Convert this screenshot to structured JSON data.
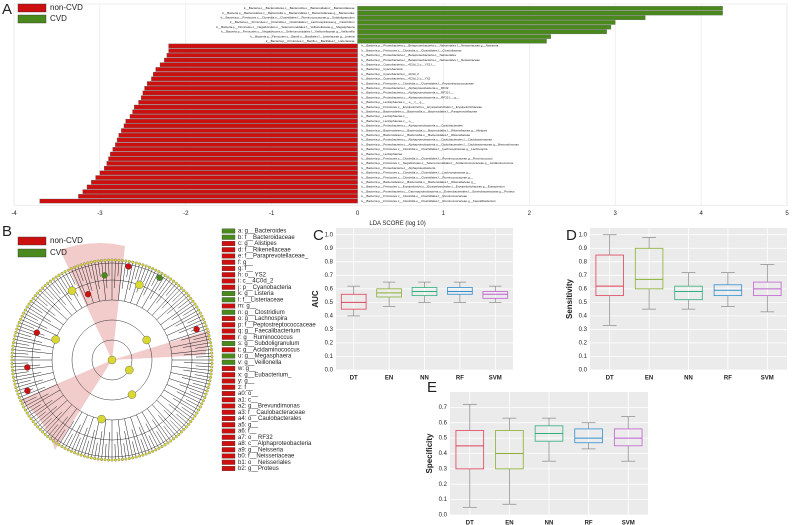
{
  "chart_data": [
    {
      "type": "hbar",
      "panel": "A",
      "xlabel": "LDA SCORE (log 10)",
      "categories": [
        "k__Bacteria.p__Bacteroidetes.c__Bacteroidia.o__Bacteroidales.f__Bacteroidaceae",
        "k__Bacteria.p__Bacteroidetes.c__Bacteroidia.o__Bacteroidales.f__Bacteroidaceae.g__Bacteroides",
        "k__Bacteria.p__Firmicutes.c__Clostridia.o__Clostridiales.f__Ruminococcaceae.g__Subdoligranulum",
        "k__Bacteria.p__Firmicutes.c__Clostridia.o__Clostridiales.f__Lachnospiraceae.g__Clostridium",
        "k__Bacteria.p__Firmicutes.c__Negativicutes.o__Selenomonadales.f__Veillonellaceae.g__Megasphaera",
        "k__Bacteria.p__Firmicutes.c__Negativicutes.o__Selenomonadales.f__Veillonellaceae.g__Veillonella",
        "k__Bacteria.p__Firmicutes.c__Bacilli.o__Bacillales.f__Listeriaceae.g__Listeria",
        "k__Bacteria.p__Firmicutes.c__Bacilli.o__Bacillales.f__Listeriaceae",
        "k__Bacteria.p__Proteobacteria.c__Betaproteobacteria.o__Neisseriales.f__Neisseriaceae.g__Neisseria",
        "k__Bacteria.p__Firmicutes.c__Clostridia.o__Clostridiales.f__Clostridiaceae",
        "k__Bacteria.p__Proteobacteria.c__Betaproteobacteria.o__Neisseriales",
        "k__Bacteria.p__Proteobacteria.c__Betaproteobacteria.o__Neisseriales.f__Neisseriaceae",
        "k__Bacteria.p__Cyanobacteria.c__4C0d_2.o__YS2.f__",
        "k__Bacteria.p__Cyanobacteria",
        "k__Bacteria.p__Cyanobacteria.c__4C0d_2",
        "k__Bacteria.p__Cyanobacteria.c__4C0d_2.o__YS2",
        "k__Bacteria.p__Firmicutes.c__Clostridia.o__Clostridiales.f__Peptostreptococcaceae",
        "k__Bacteria.p__Proteobacteria.c__Alphaproteobacteria.o__RF32",
        "k__Bacteria.p__Proteobacteria.c__Alphaproteobacteria.o__RF32.f__",
        "k__Bacteria.p__Proteobacteria.c__Alphaproteobacteria.o__RF32.f__.g__",
        "k__Bacteria.p__Lentisphaerae.c__.o__.f__.g__",
        "k__Bacteria.p__Firmicutes.c__Erysipelotrichi.o__Erysipelotrichales.f__Erysipelotrichaceae",
        "k__Bacteria.p__Bacteroidetes.c__Bacteroidia.o__Bacteroidales.f__Paraprevotellaceae",
        "k__Bacteria.p__Lentisphaerae.c__",
        "k__Bacteria.p__Lentisphaerae.c__.o__",
        "k__Bacteria.p__Proteobacteria.c__Alphaproteobacteria.o__Caulobacterales",
        "k__Bacteria.p__Bacteroidetes.c__Bacteroidia.o__Bacteroidales.f__Rikenellaceae.g__Alistipes",
        "k__Bacteria.p__Bacteroidetes.c__Bacteroidia.o__Bacteroidales.f__Rikenellaceae",
        "k__Bacteria.p__Proteobacteria.c__Alphaproteobacteria.o__Caulobacterales.f__Caulobacteraceae",
        "k__Bacteria.p__Proteobacteria.c__Alphaproteobacteria.o__Caulobacterales.f__Caulobacteraceae.g__Brevundimonas",
        "k__Bacteria.p__Firmicutes.c__Clostridia.o__Clostridiales.f__Lachnospiraceae.g__Lachnospira",
        "k__Bacteria.p__Lentisphaerae",
        "k__Bacteria.p__Firmicutes.c__Clostridia.o__Clostridiales.f__Ruminococcaceae.g__Ruminococcus",
        "k__Bacteria.p__Firmicutes.c__Negativicutes.o__Selenomonadales.f__Acidaminococcaceae.g__Acidaminococcus",
        "k__Bacteria.p__Proteobacteria.c__Alphaproteobacteria",
        "k__Bacteria.p__Firmicutes.c__Clostridia.o__Clostridiales.f__Lachnospiraceae.g__",
        "k__Bacteria.p__Firmicutes.c__Clostridia.o__Clostridiales.f__Ruminococcaceae.g__",
        "k__Bacteria.p__Bacteroidetes.c__Bacteroidia.o__Bacteroidales.f__Rikenellaceae.g__",
        "k__Bacteria.p__Firmicutes.c__Erysipelotrichi.o__Erysipelotrichales.f__Erysipelotrichaceae.g__Eubacterium",
        "k__Bacteria.p__Proteobacteria.c__Gammaproteobacteria.o__Enterobacteriales.f__Enterobacteriaceae.g__Proteus",
        "k__Bacteria.p__Firmicutes.c__Clostridia.o__Clostridiales.f__Ruminococcaceae",
        "k__Bacteria.p__Firmicutes.c__Clostridia.o__Clostridiales.f__Ruminococcaceae.g__Faecalibacterium"
      ],
      "series": [
        {
          "name": "non-CVD",
          "color": "#cc1010",
          "values": [
            null,
            null,
            null,
            null,
            null,
            null,
            null,
            null,
            -2.2,
            -2.2,
            -2.22,
            -2.25,
            -2.3,
            -2.35,
            -2.38,
            -2.4,
            -2.45,
            -2.48,
            -2.5,
            -2.52,
            -2.55,
            -2.6,
            -2.62,
            -2.65,
            -2.7,
            -2.72,
            -2.75,
            -2.78,
            -2.8,
            -2.82,
            -2.85,
            -2.88,
            -2.9,
            -2.92,
            -2.95,
            -3.0,
            -3.05,
            -3.1,
            -3.15,
            -3.2,
            -3.25,
            -3.7
          ]
        },
        {
          "name": "CVD",
          "color": "#4a8a1c",
          "values": [
            4.25,
            4.25,
            3.35,
            3.0,
            2.95,
            2.9,
            2.25,
            2.2,
            null,
            null,
            null,
            null,
            null,
            null,
            null,
            null,
            null,
            null,
            null,
            null,
            null,
            null,
            null,
            null,
            null,
            null,
            null,
            null,
            null,
            null,
            null,
            null,
            null,
            null,
            null,
            null,
            null,
            null,
            null,
            null,
            null,
            null
          ]
        }
      ],
      "xlim": [
        -4,
        5
      ],
      "xticks": [
        -4,
        -3,
        -2,
        -1,
        0,
        1,
        2,
        3,
        4,
        5
      ]
    },
    {
      "type": "box",
      "panel": "C",
      "ylabel": "AUC",
      "categories": [
        "DT",
        "EN",
        "NN",
        "RF",
        "SVM"
      ],
      "colors": [
        "#e0405a",
        "#8ab030",
        "#30b080",
        "#3090d0",
        "#c060d0"
      ],
      "boxes": [
        {
          "min": 0.4,
          "q1": 0.45,
          "median": 0.5,
          "q3": 0.56,
          "max": 0.62
        },
        {
          "min": 0.47,
          "q1": 0.54,
          "median": 0.57,
          "q3": 0.6,
          "max": 0.65
        },
        {
          "min": 0.5,
          "q1": 0.55,
          "median": 0.58,
          "q3": 0.61,
          "max": 0.65
        },
        {
          "min": 0.5,
          "q1": 0.56,
          "median": 0.58,
          "q3": 0.61,
          "max": 0.65
        },
        {
          "min": 0.5,
          "q1": 0.53,
          "median": 0.56,
          "q3": 0.58,
          "max": 0.62
        }
      ],
      "ylim": [
        0,
        1.05
      ],
      "yticks": [
        {
          "value": 0,
          "label": "0.0"
        },
        0.1,
        0.2,
        0.3,
        0.4,
        0.5,
        0.6,
        0.7,
        0.8,
        0.9,
        {
          "value": 1,
          "label": "1.0"
        }
      ],
      "grid": true
    },
    {
      "type": "box",
      "panel": "D",
      "ylabel": "Sensitivity",
      "categories": [
        "DT",
        "EN",
        "NN",
        "RF",
        "SVM"
      ],
      "colors": [
        "#e0405a",
        "#8ab030",
        "#30b080",
        "#3090d0",
        "#c060d0"
      ],
      "boxes": [
        {
          "min": 0.33,
          "q1": 0.55,
          "median": 0.62,
          "q3": 0.85,
          "max": 1.0
        },
        {
          "min": 0.45,
          "q1": 0.6,
          "median": 0.67,
          "q3": 0.9,
          "max": 0.98
        },
        {
          "min": 0.45,
          "q1": 0.52,
          "median": 0.58,
          "q3": 0.62,
          "max": 0.72
        },
        {
          "min": 0.47,
          "q1": 0.55,
          "median": 0.59,
          "q3": 0.63,
          "max": 0.72
        },
        {
          "min": 0.43,
          "q1": 0.55,
          "median": 0.6,
          "q3": 0.65,
          "max": 0.78
        }
      ],
      "ylim": [
        0,
        1.05
      ],
      "yticks": [
        {
          "value": 0,
          "label": "0.0"
        },
        0.1,
        0.2,
        0.3,
        0.4,
        0.5,
        0.6,
        0.7,
        0.8,
        0.9,
        {
          "value": 1,
          "label": "1.0"
        }
      ],
      "grid": true
    },
    {
      "type": "box",
      "panel": "E",
      "ylabel": "Specificity",
      "categories": [
        "DT",
        "EN",
        "NN",
        "RF",
        "SVM"
      ],
      "colors": [
        "#e0405a",
        "#8ab030",
        "#30b080",
        "#3090d0",
        "#c060d0"
      ],
      "boxes": [
        {
          "min": 0.05,
          "q1": 0.3,
          "median": 0.45,
          "q3": 0.55,
          "max": 0.72
        },
        {
          "min": 0.07,
          "q1": 0.3,
          "median": 0.4,
          "q3": 0.55,
          "max": 0.63
        },
        {
          "min": 0.35,
          "q1": 0.48,
          "median": 0.53,
          "q3": 0.58,
          "max": 0.63
        },
        {
          "min": 0.43,
          "q1": 0.47,
          "median": 0.5,
          "q3": 0.56,
          "max": 0.6
        },
        {
          "min": 0.35,
          "q1": 0.45,
          "median": 0.5,
          "q3": 0.56,
          "max": 0.64
        }
      ],
      "ylim": [
        0,
        0.8
      ],
      "yticks": [
        {
          "value": 0,
          "label": "0.0"
        },
        0.1,
        0.2,
        0.3,
        0.4,
        0.5,
        0.6,
        0.7
      ],
      "grid": true
    }
  ],
  "cladogram": {
    "panel": "B",
    "legend": [
      {
        "name": "non-CVD",
        "color": "#cc1010"
      },
      {
        "name": "CVD",
        "color": "#4a8a1c"
      }
    ],
    "nodes": [
      {
        "label": "a: g__Bacteroides",
        "group": 1
      },
      {
        "label": "b: f__Bacteroidaceae",
        "group": 1
      },
      {
        "label": "c: g__Alistipes",
        "group": 0
      },
      {
        "label": "d: f__Rikenellaceae",
        "group": 0
      },
      {
        "label": "e: f__Paraprevotellaceae_",
        "group": 0
      },
      {
        "label": "f: g__",
        "group": 0
      },
      {
        "label": "g: f__",
        "group": 0
      },
      {
        "label": "h: o__YS2",
        "group": 0
      },
      {
        "label": "i: c__4C0d_2",
        "group": 0
      },
      {
        "label": "j: p__Cyanobacteria",
        "group": 0
      },
      {
        "label": "k: g__Listeria",
        "group": 1
      },
      {
        "label": "l: f__Listeriaceae",
        "group": 1
      },
      {
        "label": "m: g__",
        "group": 0
      },
      {
        "label": "n: g__Clostridium",
        "group": 1
      },
      {
        "label": "o: g__Lachnospira",
        "group": 0
      },
      {
        "label": "p: f__Peptostreptococcaceae",
        "group": 0
      },
      {
        "label": "q: g__Faecalibacterium",
        "group": 0
      },
      {
        "label": "r: g__Ruminococcus",
        "group": 0
      },
      {
        "label": "s: g__Subdoligranulum",
        "group": 1
      },
      {
        "label": "t: g__Acidaminococcus",
        "group": 0
      },
      {
        "label": "u: g__Megasphaera",
        "group": 1
      },
      {
        "label": "v: g__Veillonella",
        "group": 1
      },
      {
        "label": "w: g__",
        "group": 0
      },
      {
        "label": "x: g__Eubacterium_",
        "group": 0
      },
      {
        "label": "y: g__",
        "group": 0
      },
      {
        "label": "z: f__",
        "group": 0
      },
      {
        "label": "a0: o__",
        "group": 0
      },
      {
        "label": "a1: c__",
        "group": 0
      },
      {
        "label": "a2: g__Brevundimonas",
        "group": 0
      },
      {
        "label": "a3: f__Caulobacteraceae",
        "group": 0
      },
      {
        "label": "a4: o__Caulobacterales",
        "group": 0
      },
      {
        "label": "a5: g__",
        "group": 0
      },
      {
        "label": "a6: f__",
        "group": 0
      },
      {
        "label": "a7: o__RF32",
        "group": 0
      },
      {
        "label": "a8: c__Alphaproteobacteria",
        "group": 0
      },
      {
        "label": "a9: g__Neisseria",
        "group": 0
      },
      {
        "label": "b0: f__Neisseriaceae",
        "group": 0
      },
      {
        "label": "b1: o__Neisseriales",
        "group": 0
      },
      {
        "label": "b2: g__Proteus",
        "group": 0
      }
    ]
  }
}
